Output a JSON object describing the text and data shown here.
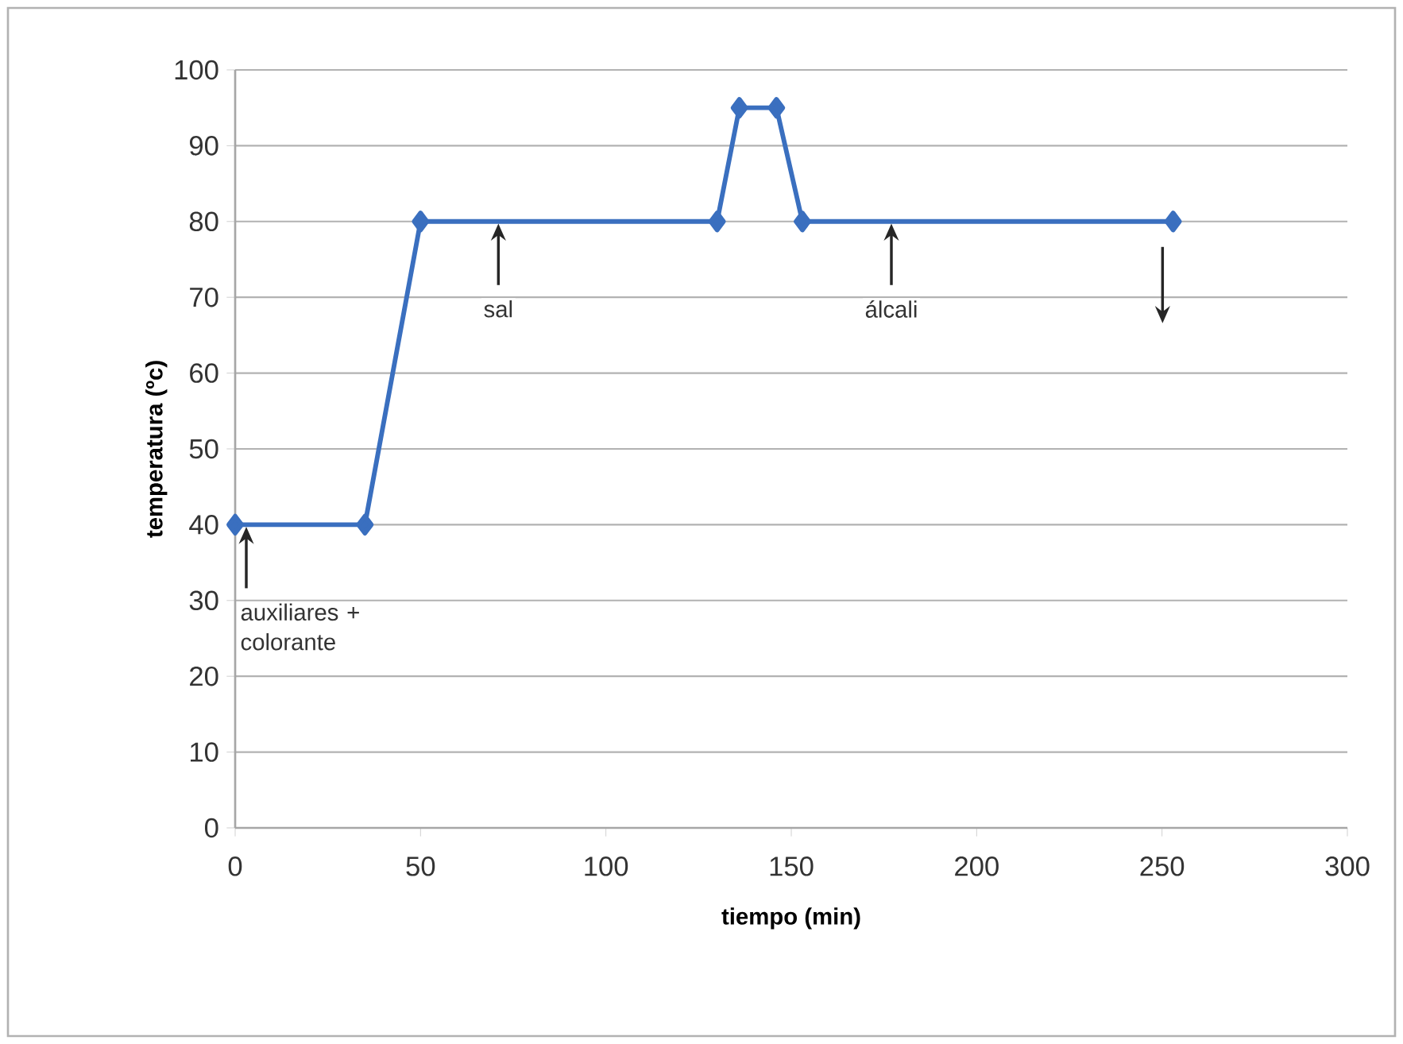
{
  "chart_data": {
    "type": "line",
    "xlabel": "tiempo (min)",
    "ylabel": "temperatura (ºc)",
    "x": [
      0,
      35,
      50,
      130,
      136,
      146,
      153,
      253
    ],
    "series": [
      {
        "color": "#3a6fbf",
        "values": [
          40,
          40,
          80,
          80,
          95,
          95,
          80,
          80
        ]
      }
    ],
    "xlim": [
      0,
      300
    ],
    "ylim": [
      0,
      100
    ],
    "xticks": [
      0,
      50,
      100,
      150,
      200,
      250,
      300
    ],
    "yticks": [
      0,
      10,
      20,
      30,
      40,
      50,
      60,
      70,
      80,
      90,
      100
    ],
    "grid": "y",
    "marker": "diamond",
    "line_style": "solid",
    "annotations": [
      {
        "text": "auxiliares + colorante",
        "x": 3,
        "y": 40
      },
      {
        "text": "sal",
        "x": 71,
        "y": 80
      },
      {
        "text": "álcali",
        "x": 177,
        "y": 80
      }
    ]
  }
}
